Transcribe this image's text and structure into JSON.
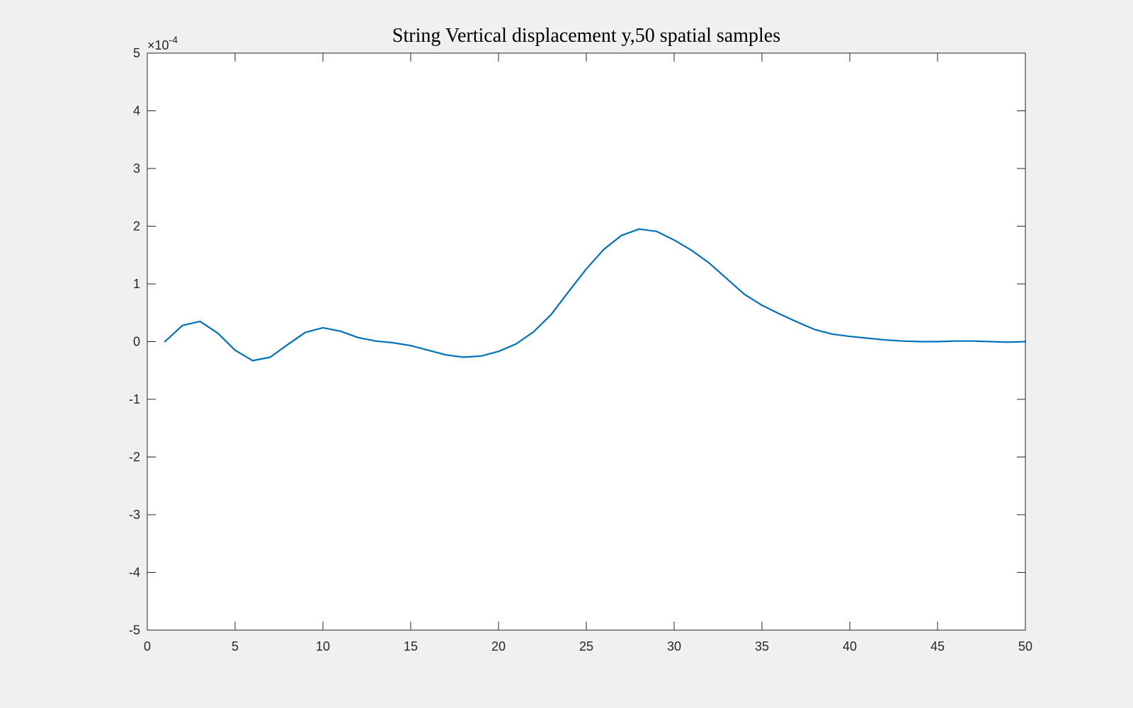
{
  "window": {
    "background": "#f0f0f0"
  },
  "chart_data": {
    "type": "line",
    "title": "String Vertical displacement y,50 spatial samples",
    "xlabel": "",
    "ylabel": "",
    "xlim": [
      0,
      50
    ],
    "ylim": [
      -0.0005,
      0.0005
    ],
    "y_exponent_label": "×10",
    "y_exponent_power": "-4",
    "grid": false,
    "x_ticks": [
      0,
      5,
      10,
      15,
      20,
      25,
      30,
      35,
      40,
      45,
      50
    ],
    "x_tick_labels": [
      "0",
      "5",
      "10",
      "15",
      "20",
      "25",
      "30",
      "35",
      "40",
      "45",
      "50"
    ],
    "y_ticks": [
      -0.0005,
      -0.0004,
      -0.0003,
      -0.0002,
      -0.0001,
      0,
      0.0001,
      0.0002,
      0.0003,
      0.0004,
      0.0005
    ],
    "y_tick_labels": [
      "-5",
      "-4",
      "-3",
      "-2",
      "-1",
      "0",
      "1",
      "2",
      "3",
      "4",
      "5"
    ],
    "series": [
      {
        "color": "#0072bd",
        "x": [
          1,
          2,
          3,
          4,
          5,
          6,
          7,
          8,
          9,
          10,
          11,
          12,
          13,
          14,
          15,
          16,
          17,
          18,
          19,
          20,
          21,
          22,
          23,
          24,
          25,
          26,
          27,
          28,
          29,
          30,
          31,
          32,
          33,
          34,
          35,
          36,
          37,
          38,
          39,
          40,
          41,
          42,
          43,
          44,
          45,
          46,
          47,
          48,
          49,
          50
        ],
        "y": [
          0,
          2.8e-05,
          3.5e-05,
          1.5e-05,
          -1.5e-05,
          -3.3e-05,
          -2.7e-05,
          -5e-06,
          1.6e-05,
          2.4e-05,
          1.8e-05,
          7e-06,
          1e-06,
          -2e-06,
          -7e-06,
          -1.5e-05,
          -2.3e-05,
          -2.7e-05,
          -2.5e-05,
          -1.7e-05,
          -4e-06,
          1.7e-05,
          4.7e-05,
          8.7e-05,
          0.000126,
          0.00016,
          0.000184,
          0.000195,
          0.000191,
          0.000176,
          0.000158,
          0.000136,
          0.000109,
          8.2e-05,
          6.3e-05,
          4.8e-05,
          3.4e-05,
          2.1e-05,
          1.3e-05,
          9e-06,
          6e-06,
          3e-06,
          1e-06,
          0,
          0,
          1e-06,
          1e-06,
          0,
          -1e-06,
          0
        ]
      }
    ]
  }
}
